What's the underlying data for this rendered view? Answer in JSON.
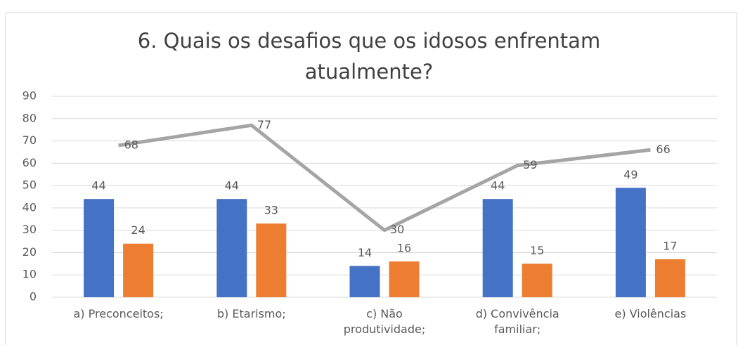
{
  "chart_data": {
    "type": "bar",
    "title": "6. Quais os desafios que os idosos enfrentam atualmente?",
    "categories": [
      "a) Preconceitos;",
      "b) Etarismo;",
      "c) Não produtividade;",
      "d) Convivência familiar;",
      "e) Violências"
    ],
    "series": [
      {
        "type": "bar",
        "color": "#4472c4",
        "values": [
          44,
          44,
          14,
          44,
          49
        ]
      },
      {
        "type": "bar",
        "color": "#ed7d31",
        "values": [
          24,
          33,
          16,
          15,
          17
        ]
      },
      {
        "type": "line",
        "color": "#a5a5a5",
        "values": [
          68,
          77,
          30,
          59,
          66
        ]
      }
    ],
    "ylim": [
      0,
      90
    ],
    "yticks": [
      0,
      10,
      20,
      30,
      40,
      50,
      60,
      70,
      80,
      90
    ],
    "grid": true
  }
}
